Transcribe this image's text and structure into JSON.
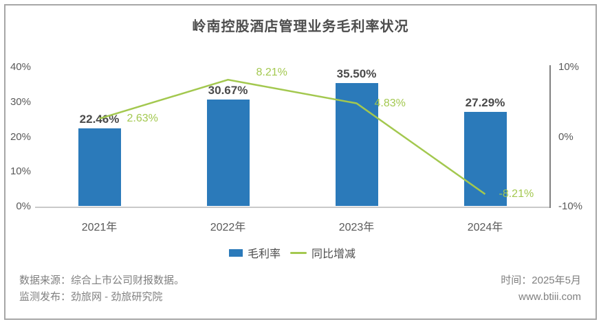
{
  "title": "岭南控股酒店管理业务毛利率状况",
  "chart_data": {
    "type": "bar",
    "combo": "bar+line",
    "title": "岭南控股酒店管理业务毛利率状况",
    "categories": [
      "2021年",
      "2022年",
      "2023年",
      "2024年"
    ],
    "series": [
      {
        "name": "毛利率",
        "type": "bar",
        "axis": "left",
        "values": [
          22.46,
          30.67,
          35.5,
          27.29
        ],
        "labels": [
          "22.46%",
          "30.67%",
          "35.50%",
          "27.29%"
        ],
        "color": "#2B7ABA"
      },
      {
        "name": "同比增减",
        "type": "line",
        "axis": "right",
        "values": [
          2.63,
          8.21,
          4.83,
          -8.21
        ],
        "labels": [
          "2.63%",
          "8.21%",
          "4.83%",
          "-8.21%"
        ],
        "color": "#A3C84F"
      }
    ],
    "left_axis": {
      "min": 0,
      "max": 40,
      "tick_labels": [
        "40%",
        "30%",
        "20%",
        "10%",
        "0%"
      ],
      "tick_values": [
        40,
        30,
        20,
        10,
        0
      ]
    },
    "right_axis": {
      "min": -10,
      "max": 10,
      "tick_labels": [
        "10%",
        "0%",
        "-10%"
      ],
      "tick_values": [
        10,
        0,
        -10
      ]
    },
    "legend_position": "bottom",
    "grid": false
  },
  "footer": {
    "source_line": "数据来源：综合上市公司财报数据。",
    "publisher_line": "监测发布：劲旅网 - 劲旅研究院",
    "time_line": "时间：2025年5月",
    "website": "www.btiii.com"
  },
  "colors": {
    "bar": "#2B7ABA",
    "line": "#A3C84F",
    "frame_border": "#A6A6A6",
    "axis_line": "#C9C9C9",
    "right_axis_line": "#7F7F7F"
  }
}
